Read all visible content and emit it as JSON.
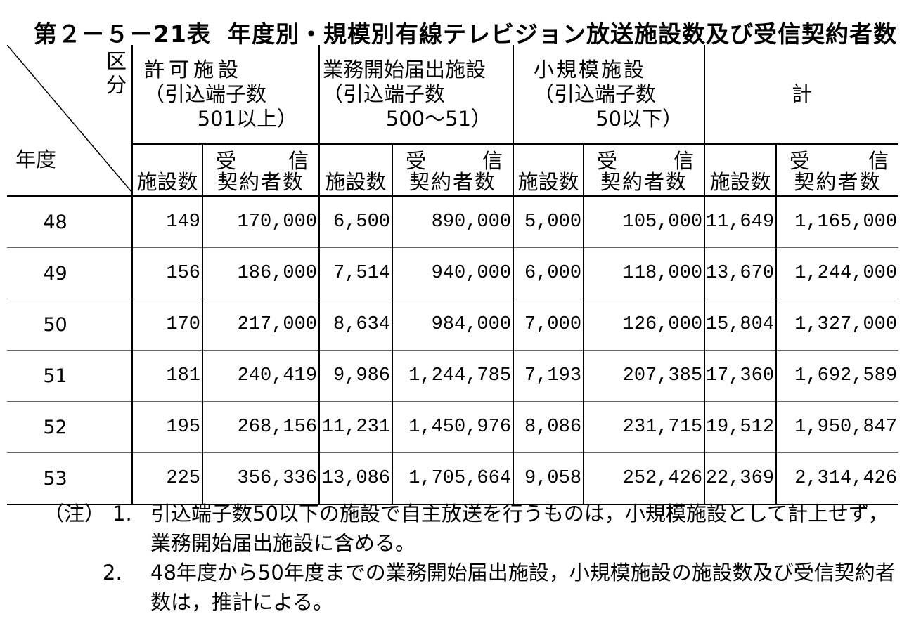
{
  "title": {
    "number": "第２－５－21表",
    "text": "年度別・規模別有線テレビジョン放送施設数及び受信契約者数"
  },
  "header": {
    "corner_kubun": "区分",
    "corner_nendo": "年度",
    "groups": [
      {
        "line1": "許可施設",
        "line2": "（引込端子数",
        "line3": "501以上）"
      },
      {
        "line1": "業務開始届出施設",
        "line2": "（引込端子数",
        "line3": "500～51）"
      },
      {
        "line1": "小規模施設",
        "line2": "（引込端子数",
        "line3": "50以下）"
      },
      {
        "line1": "計",
        "line2": "",
        "line3": ""
      }
    ],
    "sub_count": "施設数",
    "sub_rcv_a": "受信",
    "sub_rcv_b": "契約者数"
  },
  "rows": [
    {
      "year": "48",
      "cells": [
        "149",
        "170,000",
        "6,500",
        "890,000",
        "5,000",
        "105,000",
        "11,649",
        "1,165,000"
      ]
    },
    {
      "year": "49",
      "cells": [
        "156",
        "186,000",
        "7,514",
        "940,000",
        "6,000",
        "118,000",
        "13,670",
        "1,244,000"
      ]
    },
    {
      "year": "50",
      "cells": [
        "170",
        "217,000",
        "8,634",
        "984,000",
        "7,000",
        "126,000",
        "15,804",
        "1,327,000"
      ]
    },
    {
      "year": "51",
      "cells": [
        "181",
        "240,419",
        "9,986",
        "1,244,785",
        "7,193",
        "207,385",
        "17,360",
        "1,692,589"
      ]
    },
    {
      "year": "52",
      "cells": [
        "195",
        "268,156",
        "11,231",
        "1,450,976",
        "8,086",
        "231,715",
        "19,512",
        "1,950,847"
      ]
    },
    {
      "year": "53",
      "cells": [
        "225",
        "356,336",
        "13,086",
        "1,705,664",
        "9,058",
        "252,426",
        "22,369",
        "2,314,426"
      ]
    }
  ],
  "notes": {
    "label": "（注）",
    "items": [
      {
        "num": "1.",
        "text": "引込端子数50以下の施設で自主放送を行うものは，小規模施設として計上せず，業務開始届出施設に含める。"
      },
      {
        "num": "2.",
        "text": "48年度から50年度までの業務開始届出施設，小規模施設の施設数及び受信契約者数は，推計による。"
      }
    ]
  }
}
